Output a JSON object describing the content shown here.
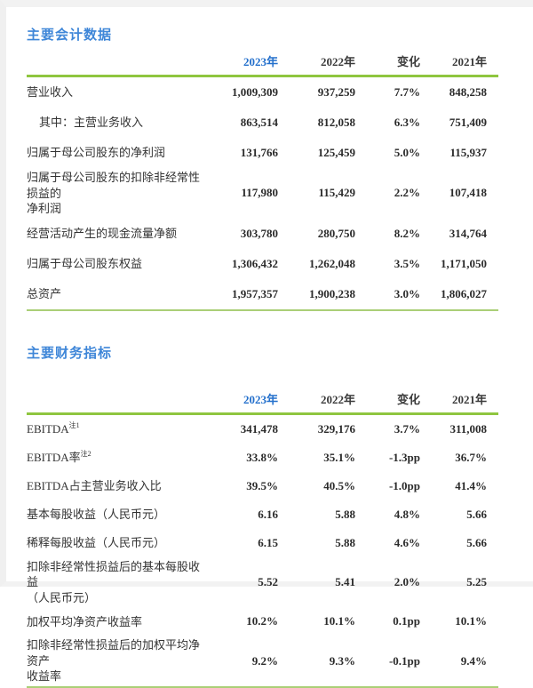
{
  "page": {
    "accent_blue": "#3e86d8",
    "current_year_blue": "#2470cc",
    "header_line_green": "#8fc63f",
    "bottom_line_green": "#aacf77"
  },
  "accounting": {
    "title": "主要会计数据",
    "columns": [
      "2023年",
      "2022年",
      "变化",
      "2021年"
    ],
    "rows": [
      {
        "label": "营业收入",
        "values": [
          "1,009,309",
          "937,259",
          "7.7%",
          "848,258"
        ]
      },
      {
        "label": "其中：主营业务收入",
        "indent": true,
        "values": [
          "863,514",
          "812,058",
          "6.3%",
          "751,409"
        ]
      },
      {
        "label": "归属于母公司股东的净利润",
        "values": [
          "131,766",
          "125,459",
          "5.0%",
          "115,937"
        ]
      },
      {
        "label": "归属于母公司股东的扣除非经常性损益的\n净利润",
        "values": [
          "117,980",
          "115,429",
          "2.2%",
          "107,418"
        ]
      },
      {
        "label": "经营活动产生的现金流量净额",
        "values": [
          "303,780",
          "280,750",
          "8.2%",
          "314,764"
        ]
      },
      {
        "label": "归属于母公司股东权益",
        "values": [
          "1,306,432",
          "1,262,048",
          "3.5%",
          "1,171,050"
        ]
      },
      {
        "label": "总资产",
        "values": [
          "1,957,357",
          "1,900,238",
          "3.0%",
          "1,806,027"
        ]
      }
    ]
  },
  "financial": {
    "title": "主要财务指标",
    "columns": [
      "2023年",
      "2022年",
      "变化",
      "2021年"
    ],
    "rows": [
      {
        "label": "EBITDA",
        "sup": "注1",
        "values": [
          "341,478",
          "329,176",
          "3.7%",
          "311,008"
        ]
      },
      {
        "label": "EBITDA率",
        "sup": "注2",
        "values": [
          "33.8%",
          "35.1%",
          "-1.3pp",
          "36.7%"
        ]
      },
      {
        "label": "EBITDA占主营业务收入比",
        "values": [
          "39.5%",
          "40.5%",
          "-1.0pp",
          "41.4%"
        ]
      },
      {
        "label": "基本每股收益（人民币元）",
        "values": [
          "6.16",
          "5.88",
          "4.8%",
          "5.66"
        ]
      },
      {
        "label": "稀释每股收益（人民币元）",
        "values": [
          "6.15",
          "5.88",
          "4.6%",
          "5.66"
        ]
      },
      {
        "label": "扣除非经常性损益后的基本每股收益\n（人民币元）",
        "values": [
          "5.52",
          "5.41",
          "2.0%",
          "5.25"
        ]
      },
      {
        "label": "加权平均净资产收益率",
        "values": [
          "10.2%",
          "10.1%",
          "0.1pp",
          "10.1%"
        ]
      },
      {
        "label": "扣除非经常性损益后的加权平均净资产\n收益率",
        "values": [
          "9.2%",
          "9.3%",
          "-0.1pp",
          "9.4%"
        ]
      }
    ]
  }
}
